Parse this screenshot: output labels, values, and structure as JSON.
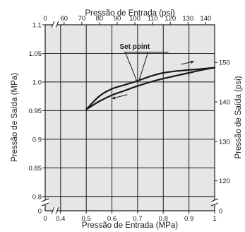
{
  "chart_data": {
    "type": "line",
    "x_bottom": {
      "label": "Pressão de Entrada (MPa)",
      "ticks": [
        0.4,
        0.5,
        0.6,
        0.7,
        0.8,
        0.9,
        1
      ],
      "tick_labels": [
        "0.4",
        "0.5",
        "0.6",
        "0.7",
        "0.8",
        "0.9",
        "1"
      ],
      "origin_label": "0",
      "range": [
        0.34,
        1.0
      ],
      "broken": true
    },
    "x_top": {
      "label": "Pressão de Entrada (psi)",
      "ticks": [
        60,
        70,
        80,
        90,
        100,
        110,
        120,
        130,
        140
      ],
      "tick_labels": [
        "60",
        "70",
        "80",
        "90",
        "100",
        "110",
        "120",
        "130",
        "140"
      ],
      "origin_label": "0",
      "broken": true
    },
    "y_left": {
      "label": "Pressão de Saída (MPa)",
      "ticks": [
        0.8,
        0.85,
        0.9,
        0.95,
        1.0,
        1.05,
        1.1
      ],
      "tick_labels": [
        "0.8",
        "0.85",
        "0.9",
        "0.95",
        "1.0",
        "1.05",
        "1.1"
      ],
      "origin_label": "0",
      "range": [
        0.775,
        1.1
      ],
      "broken": true
    },
    "y_right": {
      "label": "Pressão de Saída (psi)",
      "ticks": [
        120,
        130,
        140,
        150
      ],
      "tick_labels": [
        "120",
        "130",
        "140",
        "150"
      ],
      "origin_label": "0",
      "broken": true
    },
    "grid": true,
    "series": [
      {
        "direction": "increasing",
        "x": [
          0.5,
          0.55,
          0.6,
          0.65,
          0.7,
          0.75,
          0.8,
          0.85,
          0.9,
          0.95,
          1.0
        ],
        "y": [
          0.952,
          0.975,
          0.988,
          0.995,
          1.002,
          1.01,
          1.016,
          1.019,
          1.021,
          1.023,
          1.025
        ]
      },
      {
        "direction": "decreasing",
        "x": [
          1.0,
          0.95,
          0.9,
          0.85,
          0.8,
          0.75,
          0.7,
          0.65,
          0.6,
          0.55,
          0.5
        ],
        "y": [
          1.025,
          1.021,
          1.016,
          1.011,
          1.006,
          1.0,
          0.993,
          0.985,
          0.977,
          0.966,
          0.952
        ]
      }
    ],
    "annotation": {
      "text": "Set point",
      "points_to": [
        0.7,
        1.0
      ]
    },
    "colors": {
      "plot_bg": "#e6e6e6",
      "curve": "#1a1a1a",
      "grid": "#1a1a1a"
    }
  }
}
